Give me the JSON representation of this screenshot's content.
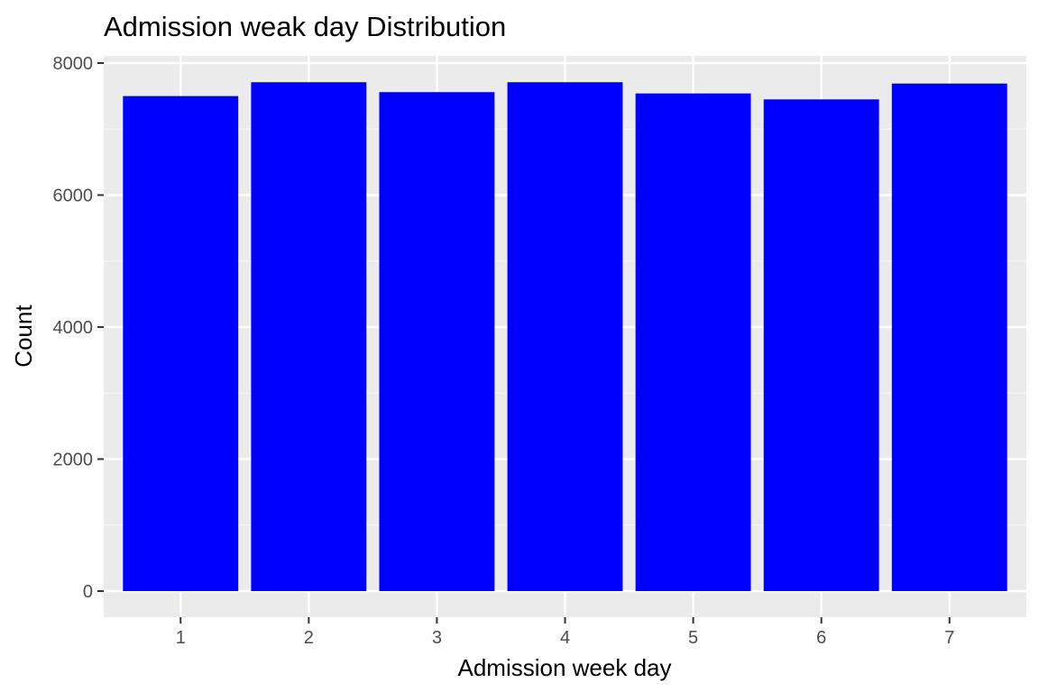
{
  "chart_data": {
    "type": "bar",
    "title": "Admission weak day Distribution",
    "xlabel": "Admission week day",
    "ylabel": "Count",
    "categories": [
      "1",
      "2",
      "3",
      "4",
      "5",
      "6",
      "7"
    ],
    "values": [
      7500,
      7710,
      7560,
      7710,
      7540,
      7450,
      7690
    ],
    "ylim": [
      0,
      8000
    ],
    "yticks": [
      0,
      2000,
      4000,
      6000,
      8000
    ],
    "ytick_labels": [
      "0",
      "2000",
      "4000",
      "6000",
      "8000"
    ],
    "grid": true,
    "legend": "none",
    "colors": {
      "bar": "#0000ff",
      "panel_background": "#ebebeb",
      "grid_major": "#ffffff",
      "grid_minor": "#f5f5f5",
      "tick_text": "#4d4d4d",
      "tick_mark": "#333333"
    }
  }
}
